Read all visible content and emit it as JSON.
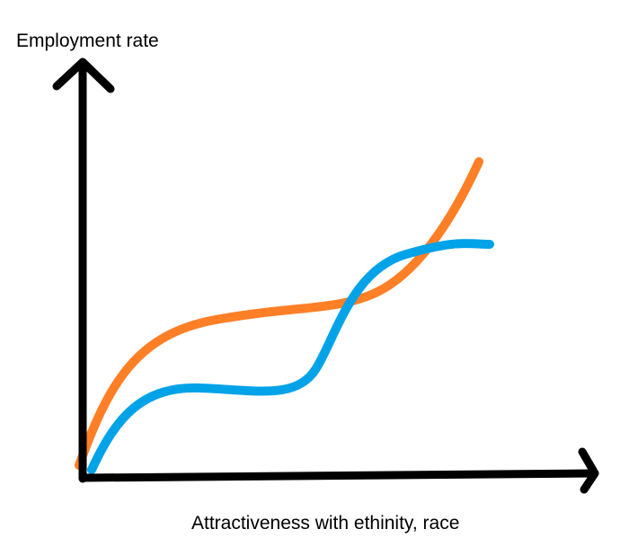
{
  "chart_data": {
    "type": "line",
    "x_label": "Attractiveness with ethinity, race",
    "y_label": "Employment rate"
  }
}
